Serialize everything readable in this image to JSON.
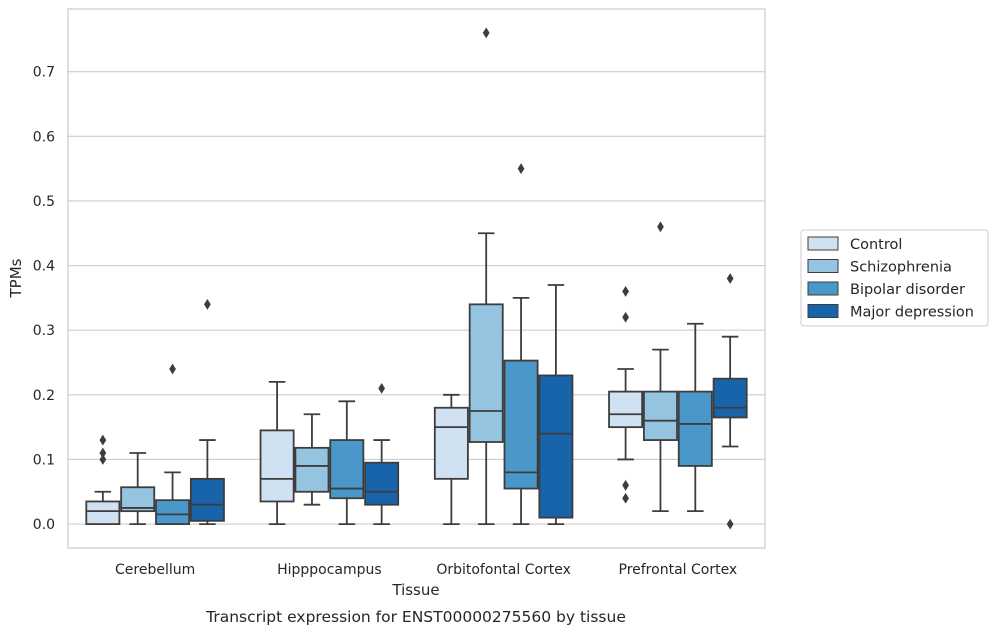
{
  "chart_data": {
    "type": "box",
    "title": "",
    "caption": "Transcript expression for ENST00000275560 by tissue",
    "xlabel": "Tissue",
    "ylabel": "TPMs",
    "ylim": [
      -0.037,
      0.797
    ],
    "yticks": [
      "0.0",
      "0.1",
      "0.2",
      "0.3",
      "0.4",
      "0.5",
      "0.6",
      "0.7"
    ],
    "grid": "horizontal",
    "legend_position": "right",
    "categories": [
      "Cerebellum",
      "Hipppocampus",
      "Orbitofontal Cortex",
      "Prefrontal Cortex"
    ],
    "series": [
      {
        "name": "Control",
        "color": "#d0e1f2",
        "boxes": [
          {
            "whislo": 0.0,
            "q1": 0.0,
            "med": 0.02,
            "q3": 0.035,
            "whishi": 0.05,
            "fliers": [
              0.1,
              0.11,
              0.13
            ]
          },
          {
            "whislo": 0.0,
            "q1": 0.035,
            "med": 0.07,
            "q3": 0.145,
            "whishi": 0.22,
            "fliers": []
          },
          {
            "whislo": 0.0,
            "q1": 0.07,
            "med": 0.15,
            "q3": 0.18,
            "whishi": 0.2,
            "fliers": []
          },
          {
            "whislo": 0.1,
            "q1": 0.15,
            "med": 0.17,
            "q3": 0.205,
            "whishi": 0.24,
            "fliers": [
              0.04,
              0.06,
              0.32,
              0.36
            ]
          }
        ]
      },
      {
        "name": "Schizophrenia",
        "color": "#94c4df",
        "boxes": [
          {
            "whislo": 0.0,
            "q1": 0.02,
            "med": 0.025,
            "q3": 0.057,
            "whishi": 0.11,
            "fliers": []
          },
          {
            "whislo": 0.03,
            "q1": 0.05,
            "med": 0.09,
            "q3": 0.118,
            "whishi": 0.17,
            "fliers": []
          },
          {
            "whislo": 0.0,
            "q1": 0.127,
            "med": 0.175,
            "q3": 0.34,
            "whishi": 0.45,
            "fliers": [
              0.76
            ]
          },
          {
            "whislo": 0.02,
            "q1": 0.13,
            "med": 0.16,
            "q3": 0.205,
            "whishi": 0.27,
            "fliers": [
              0.46
            ]
          }
        ]
      },
      {
        "name": "Bipolar disorder",
        "color": "#4a98c9",
        "boxes": [
          {
            "whislo": 0.0,
            "q1": 0.0,
            "med": 0.015,
            "q3": 0.037,
            "whishi": 0.08,
            "fliers": [
              0.24
            ]
          },
          {
            "whislo": 0.0,
            "q1": 0.04,
            "med": 0.055,
            "q3": 0.13,
            "whishi": 0.19,
            "fliers": []
          },
          {
            "whislo": 0.0,
            "q1": 0.055,
            "med": 0.08,
            "q3": 0.253,
            "whishi": 0.35,
            "fliers": [
              0.55
            ]
          },
          {
            "whislo": 0.02,
            "q1": 0.09,
            "med": 0.155,
            "q3": 0.205,
            "whishi": 0.31,
            "fliers": []
          }
        ]
      },
      {
        "name": "Major depression",
        "color": "#1764ab",
        "boxes": [
          {
            "whislo": 0.0,
            "q1": 0.005,
            "med": 0.03,
            "q3": 0.07,
            "whishi": 0.13,
            "fliers": [
              0.34
            ]
          },
          {
            "whislo": 0.0,
            "q1": 0.03,
            "med": 0.05,
            "q3": 0.095,
            "whishi": 0.13,
            "fliers": [
              0.21
            ]
          },
          {
            "whislo": 0.0,
            "q1": 0.01,
            "med": 0.14,
            "q3": 0.23,
            "whishi": 0.37,
            "fliers": []
          },
          {
            "whislo": 0.12,
            "q1": 0.165,
            "med": 0.18,
            "q3": 0.225,
            "whishi": 0.29,
            "fliers": [
              0.0,
              0.38
            ]
          }
        ]
      }
    ]
  }
}
